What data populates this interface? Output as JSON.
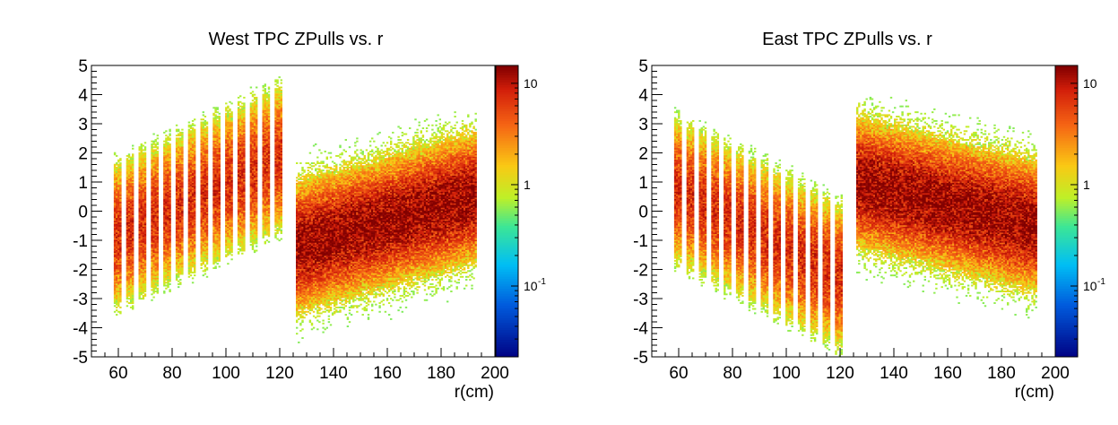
{
  "chart_data": [
    {
      "type": "heatmap",
      "title": "West TPC ZPulls vs. r",
      "xlabel": "r(cm)",
      "ylabel": "",
      "xlim": [
        50,
        200
      ],
      "ylim": [
        -5,
        5
      ],
      "x_ticks": [
        "60",
        "80",
        "100",
        "120",
        "140",
        "160",
        "180",
        "200"
      ],
      "y_ticks": [
        "5",
        "4",
        "3",
        "2",
        "1",
        "0",
        "-1",
        "-2",
        "-3",
        "-4",
        "-5"
      ],
      "color_scale": "log",
      "colorbar_range": [
        0.02,
        15
      ],
      "colorbar_ticks": [
        {
          "base": "10",
          "exp": "",
          "value": 10
        },
        {
          "base": "1",
          "exp": "",
          "value": 1
        },
        {
          "base": "10",
          "exp": "-1",
          "value": 0.1
        }
      ],
      "inner_rows": {
        "r_start": 59,
        "r_step": 4.6,
        "count": 14,
        "mean_start": -0.8,
        "mean_end": 1.8,
        "width": 3.0,
        "max_count": 8
      },
      "outer_region": {
        "r_min": 126,
        "r_max": 193,
        "mean_start": -1.2,
        "mean_end": 0.5,
        "width": 2.3,
        "max_count": 15
      }
    },
    {
      "type": "heatmap",
      "title": "East TPC ZPulls vs. r",
      "xlabel": "r(cm)",
      "ylabel": "",
      "xlim": [
        50,
        200
      ],
      "ylim": [
        -5,
        5
      ],
      "x_ticks": [
        "60",
        "80",
        "100",
        "120",
        "140",
        "160",
        "180",
        "200"
      ],
      "y_ticks": [
        "5",
        "4",
        "3",
        "2",
        "1",
        "0",
        "-1",
        "-2",
        "-3",
        "-4",
        "-5"
      ],
      "color_scale": "log",
      "colorbar_range": [
        0.02,
        15
      ],
      "colorbar_ticks": [
        {
          "base": "10",
          "exp": "",
          "value": 10
        },
        {
          "base": "1",
          "exp": "",
          "value": 1
        },
        {
          "base": "10",
          "exp": "-1",
          "value": 0.1
        }
      ],
      "inner_rows": {
        "r_start": 59,
        "r_step": 4.6,
        "count": 14,
        "mean_start": 0.7,
        "mean_end": -2.2,
        "width": 3.0,
        "max_count": 8
      },
      "outer_region": {
        "r_min": 126,
        "r_max": 193,
        "mean_start": 1.0,
        "mean_end": -0.5,
        "width": 2.3,
        "max_count": 15
      }
    }
  ]
}
